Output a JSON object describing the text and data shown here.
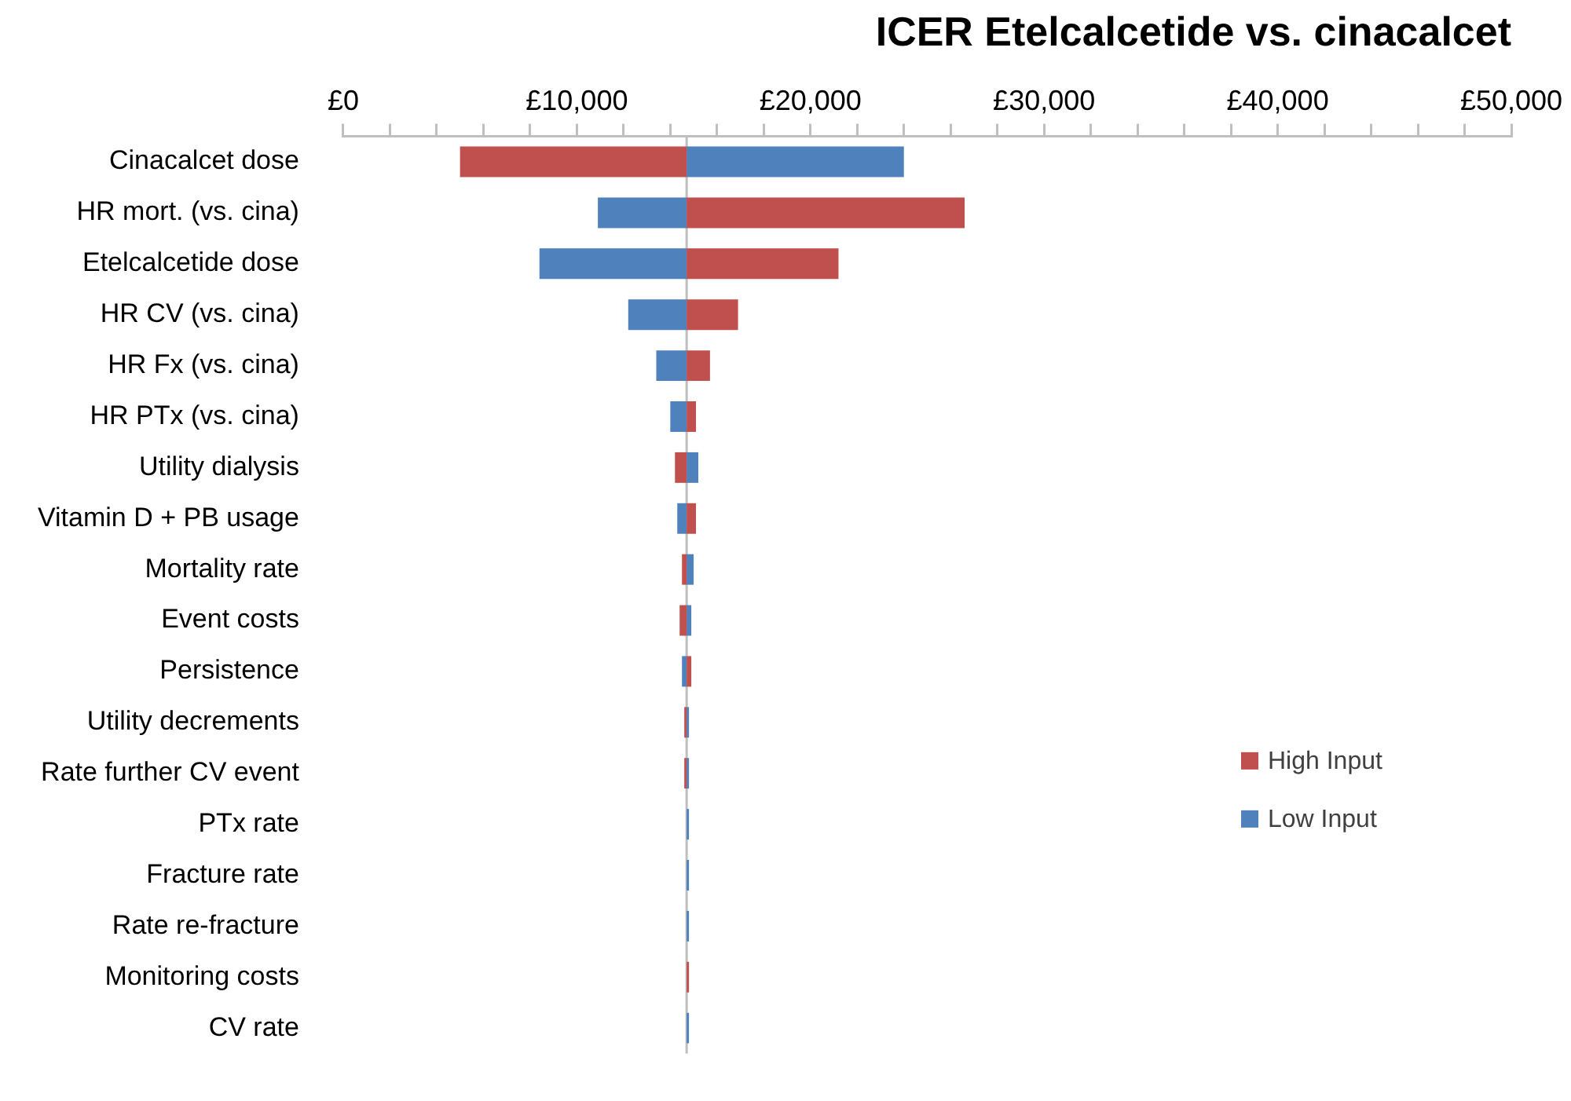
{
  "chart_data": {
    "type": "bar",
    "orientation": "horizontal",
    "title": "ICER Etelcalcetide vs. cinacalcet",
    "categories": [
      "Cinacalcet dose",
      "HR mort. (vs. cina)",
      "Etelcalcetide dose",
      "HR CV (vs. cina)",
      "HR Fx (vs. cina)",
      "HR PTx (vs. cina)",
      "Utility dialysis",
      "Vitamin D + PB usage",
      "Mortality rate",
      "Event costs",
      "Persistence",
      "Utility decrements",
      "Rate further CV event",
      "PTx rate",
      "Fracture rate",
      "Rate re-fracture",
      "Monitoring costs",
      "CV rate"
    ],
    "series": [
      {
        "name": "High Input",
        "color": "#c0504d",
        "base": [
          14700,
          14700,
          14700,
          14700,
          14700,
          14700,
          14700,
          14700,
          14700,
          14700,
          14700,
          14700,
          14700,
          null,
          null,
          null,
          14700,
          null
        ],
        "values": [
          -9700,
          11900,
          6500,
          2200,
          1000,
          400,
          -500,
          400,
          -200,
          -300,
          200,
          -100,
          -100,
          null,
          null,
          null,
          100,
          null
        ]
      },
      {
        "name": "Low Input",
        "color": "#4f81bd",
        "base": [
          14700,
          14700,
          14700,
          14700,
          14700,
          14700,
          14700,
          14700,
          14700,
          14700,
          14700,
          14700,
          14700,
          14700,
          14700,
          14700,
          null,
          14700
        ],
        "values": [
          9300,
          -3800,
          -6300,
          -2500,
          -1300,
          -700,
          500,
          -400,
          300,
          200,
          -200,
          100,
          100,
          100,
          100,
          100,
          null,
          100
        ]
      }
    ],
    "xlim": [
      0,
      50000
    ],
    "xticks": [
      {
        "value": 0,
        "label": "£0"
      },
      {
        "value": 2000,
        "label": null
      },
      {
        "value": 4000,
        "label": null
      },
      {
        "value": 6000,
        "label": null
      },
      {
        "value": 8000,
        "label": null
      },
      {
        "value": 10000,
        "label": "£10,000"
      },
      {
        "value": 12000,
        "label": null
      },
      {
        "value": 14000,
        "label": null
      },
      {
        "value": 16000,
        "label": null
      },
      {
        "value": 18000,
        "label": null
      },
      {
        "value": 20000,
        "label": "£20,000"
      },
      {
        "value": 22000,
        "label": null
      },
      {
        "value": 24000,
        "label": null
      },
      {
        "value": 26000,
        "label": null
      },
      {
        "value": 28000,
        "label": null
      },
      {
        "value": 30000,
        "label": "£30,000"
      },
      {
        "value": 32000,
        "label": null
      },
      {
        "value": 34000,
        "label": null
      },
      {
        "value": 36000,
        "label": null
      },
      {
        "value": 38000,
        "label": null
      },
      {
        "value": 40000,
        "label": "£40,000"
      },
      {
        "value": 42000,
        "label": null
      },
      {
        "value": 44000,
        "label": null
      },
      {
        "value": 46000,
        "label": null
      },
      {
        "value": 48000,
        "label": null
      },
      {
        "value": 50000,
        "label": "£50,000"
      }
    ],
    "ref_lines": [
      {
        "axis": "x",
        "value": 14700,
        "color": "#bfbfbf"
      }
    ],
    "grid": false,
    "legend": "right"
  }
}
